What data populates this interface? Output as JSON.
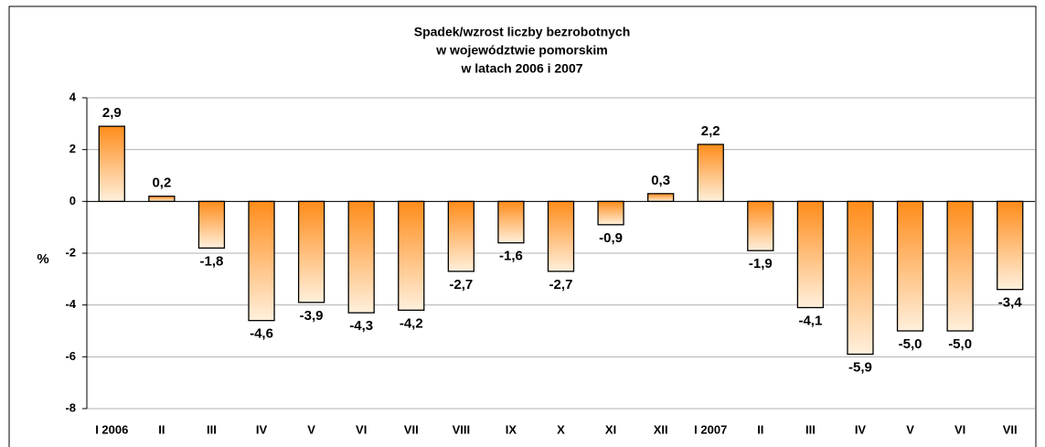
{
  "chart_data": {
    "type": "bar",
    "title": [
      "Spadek/wzrost liczby bezrobotnych",
      "w województwie pomorskim",
      "w latach 2006  i  2007"
    ],
    "y_label": "%",
    "categories": [
      "I 2006",
      "II",
      "III",
      "IV",
      "V",
      "VI",
      "VII",
      "VIII",
      "IX",
      "X",
      "XI",
      "XII",
      "I 2007",
      "II",
      "III",
      "IV",
      "V",
      "VI",
      "VII"
    ],
    "values": [
      2.9,
      0.2,
      -1.8,
      -4.6,
      -3.9,
      -4.3,
      -4.2,
      -2.7,
      -1.6,
      -2.7,
      -0.9,
      0.3,
      2.2,
      -1.9,
      -4.1,
      -5.9,
      -5.0,
      -5.0,
      -3.4
    ],
    "value_labels": [
      "2,9",
      "0,2",
      "-1,8",
      "-4,6",
      "-3,9",
      "-4,3",
      "-4,2",
      "-2,7",
      "-1,6",
      "-2,7",
      "-0,9",
      "0,3",
      "2,2",
      "-1,9",
      "-4,1",
      "-5,9",
      "-5,0",
      "-5,0",
      "-3,4"
    ],
    "color": "#ff8c1a",
    "ylim": [
      -8,
      4
    ],
    "yticks": [
      4,
      2,
      0,
      -2,
      -4,
      -6,
      -8
    ],
    "grid": true
  }
}
